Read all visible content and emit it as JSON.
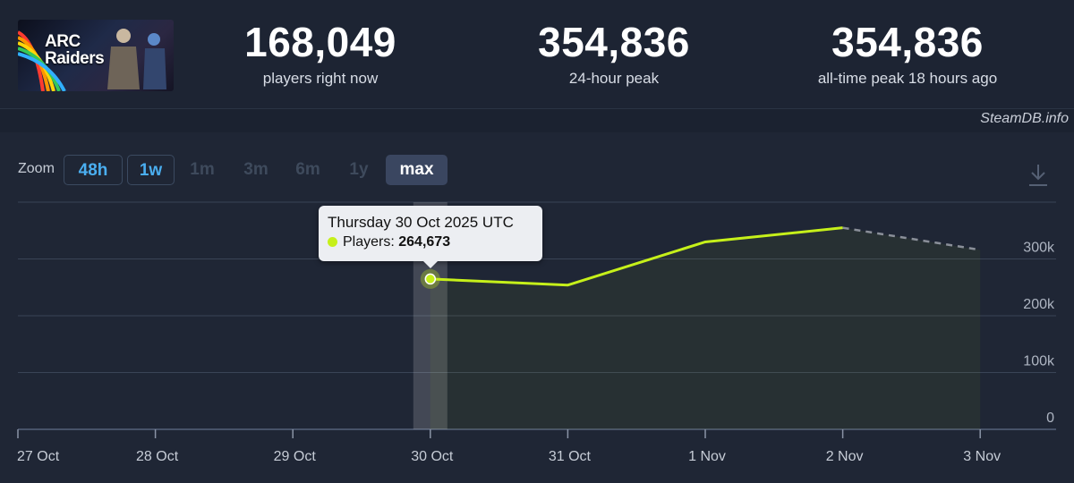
{
  "header": {
    "game": {
      "logo_text_line1": "ARC",
      "logo_text_line2": "Raiders"
    },
    "stats": [
      {
        "value": "168,049",
        "label": "players right now"
      },
      {
        "value": "354,836",
        "label": "24-hour peak"
      },
      {
        "value": "354,836",
        "label": "all-time peak 18 hours ago"
      }
    ],
    "credit": "SteamDB.info"
  },
  "zoom": {
    "label": "Zoom",
    "options": [
      {
        "label": "48h",
        "state": "outlined"
      },
      {
        "label": "1w",
        "state": "outlined"
      },
      {
        "label": "1m",
        "state": "disabled"
      },
      {
        "label": "3m",
        "state": "disabled"
      },
      {
        "label": "6m",
        "state": "disabled"
      },
      {
        "label": "1y",
        "state": "disabled"
      },
      {
        "label": "max",
        "state": "active"
      }
    ]
  },
  "tooltip": {
    "title": "Thursday 30 Oct 2025 UTC",
    "series_label": "Players:",
    "value": "264,673"
  },
  "chart_data": {
    "type": "line",
    "x_categories": [
      "27 Oct",
      "28 Oct",
      "29 Oct",
      "30 Oct",
      "31 Oct",
      "1 Nov",
      "2 Nov",
      "3 Nov"
    ],
    "y_ticks": [
      "0",
      "100k",
      "200k",
      "300k"
    ],
    "ylim": [
      0,
      400000
    ],
    "series": [
      {
        "name": "Players",
        "color": "#c6f01a",
        "points": [
          {
            "x": "30 Oct",
            "y": 264673
          },
          {
            "x": "31 Oct",
            "y": 254000
          },
          {
            "x": "1 Nov",
            "y": 330000
          },
          {
            "x": "2 Nov",
            "y": 354836
          }
        ],
        "projected": [
          {
            "x": "2 Nov",
            "y": 354836
          },
          {
            "x": "3 Nov",
            "y": 316000
          }
        ]
      }
    ],
    "highlight": {
      "x": "30 Oct",
      "y": 264673
    },
    "grid": true,
    "colors": {
      "line": "#c6f01a",
      "projection": "#8a8f99",
      "grid": "#3a4456"
    }
  }
}
